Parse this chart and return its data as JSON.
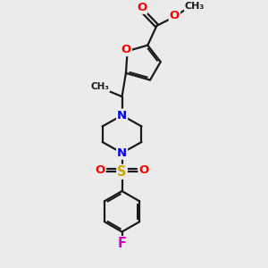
{
  "bg_color": "#ebebeb",
  "bond_color": "#1a1a1a",
  "bond_width": 1.6,
  "atom_colors": {
    "O": "#ff0000",
    "N": "#0000ee",
    "S": "#ccaa00",
    "F": "#cc00cc",
    "C": "#1a1a1a"
  },
  "font_size": 9.5
}
